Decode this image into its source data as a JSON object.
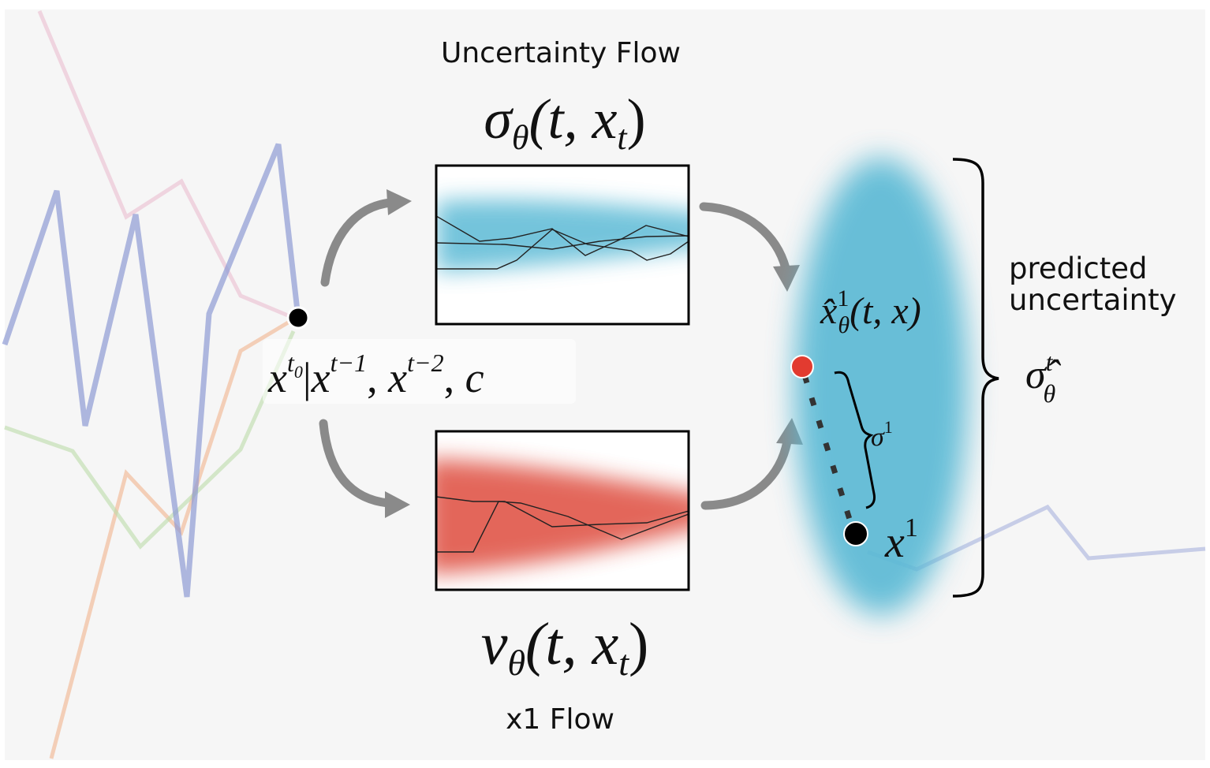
{
  "labels": {
    "uncertainty_flow_title": "Uncertainty Flow",
    "x1_flow_title": "x1 Flow",
    "predicted_line1": "predicted",
    "predicted_line2": "uncertainty"
  },
  "math": {
    "sigma_fn": {
      "main": "σ",
      "sub": "θ",
      "args": "(t, x",
      "args_sub": "t",
      "close": ")"
    },
    "v_fn": {
      "main": "v",
      "sub": "θ",
      "args": "(t, x",
      "args_sub": "t",
      "close": ")"
    },
    "condition": {
      "x": "x",
      "t0_sup_base": "t",
      "t0_sup_sub": "0",
      "bar": "|",
      "x2": "x",
      "sup2": "t−1",
      "comma1": ", ",
      "x3": "x",
      "sup3": "t−2",
      "comma2": ", ",
      "c": "c"
    },
    "xhat": {
      "main": "x̂",
      "sup": "1",
      "sub": "θ",
      "args": "(t, x)"
    },
    "sigma1": {
      "main": "σ",
      "sup": "1"
    },
    "x1": {
      "main": "x",
      "sup": "1"
    },
    "sigma_hat": {
      "main": "σ̂",
      "sup": "t",
      "sub": "θ"
    }
  },
  "colors": {
    "background": "#f6f6f6",
    "uncertainty_blue": "#5bbad5",
    "flow_red": "#e0574a",
    "arrow_gray": "#8a8a8a",
    "predicted_point": "#e23b30",
    "target_point": "#000000",
    "bg_series_blue": "#8e9bd4",
    "bg_series_pink": "#eab8cc",
    "bg_series_orange": "#f2b48e",
    "bg_series_green": "#bcdcaa"
  }
}
